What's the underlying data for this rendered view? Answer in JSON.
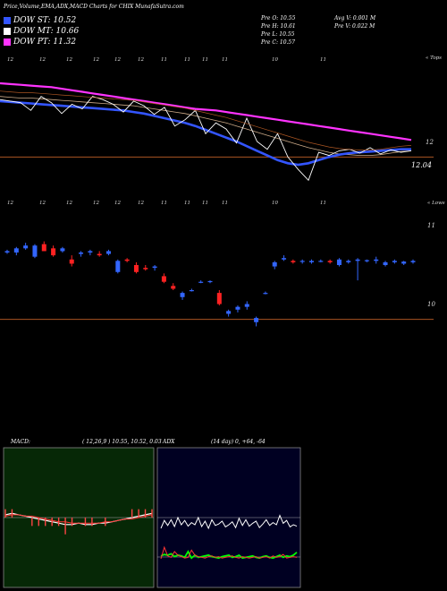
{
  "header": {
    "title": "Price,Volume,EMA,ADX,MACD Charts for CHIX  MunafaSutra.com",
    "dow_st": "DOW ST: 10.52",
    "dow_mt": "DOW MT: 10.66",
    "dow_pt": "DOW PT: 11.32",
    "pre_o": "Pre   O: 10.55",
    "pre_h": "Pre   H: 10.61",
    "pre_l": "Pre   L: 10.55",
    "pre_c": "Pre   C: 10.57",
    "avg_v": "Avg V: 0.001 M",
    "pre_v": "Pre   V: 0.022  M"
  },
  "colors": {
    "dow_st": "#3355ff",
    "dow_mt": "#ffffff",
    "dow_pt": "#ff33ff",
    "up_candle": "#3366ff",
    "down_candle": "#ff2222",
    "brown_line": "#aa5522",
    "macd_bg": "#062806",
    "adx_bg": "#000022"
  },
  "chart_data": [
    {
      "type": "line",
      "name": "ema_panel",
      "top_labels": [
        "12",
        "12",
        "12",
        "12",
        "12",
        "12",
        "11",
        "11",
        "11",
        "11",
        "10",
        "11"
      ],
      "right_top_label": "« Tops",
      "price_label_right": "12",
      "price_current": "12.04",
      "series": [
        {
          "name": "DOW PT",
          "values": [
            12.95,
            12.94,
            12.93,
            12.92,
            12.91,
            12.9,
            12.88,
            12.86,
            12.84,
            12.82,
            12.8,
            12.78,
            12.76,
            12.74,
            12.72,
            12.7,
            12.68,
            12.66,
            12.64,
            12.62,
            12.61,
            12.6,
            12.58,
            12.56,
            12.54,
            12.52,
            12.5,
            12.48,
            12.46,
            12.44,
            12.42,
            12.4,
            12.38,
            12.36,
            12.34,
            12.32,
            12.3,
            12.28,
            12.26,
            12.24,
            12.22
          ]
        },
        {
          "name": "DOW MT",
          "values": [
            12.78,
            12.77,
            12.76,
            12.76,
            12.75,
            12.74,
            12.73,
            12.72,
            12.71,
            12.7,
            12.69,
            12.68,
            12.67,
            12.66,
            12.64,
            12.62,
            12.6,
            12.58,
            12.56,
            12.53,
            12.5,
            12.47,
            12.44,
            12.4,
            12.36,
            12.32,
            12.28,
            12.24,
            12.2,
            12.16,
            12.12,
            12.09,
            12.06,
            12.04,
            12.03,
            12.02,
            12.02,
            12.03,
            12.05,
            12.07,
            12.08
          ]
        },
        {
          "name": "DOW ST",
          "values": [
            12.72,
            12.71,
            12.7,
            12.69,
            12.68,
            12.67,
            12.66,
            12.65,
            12.64,
            12.63,
            12.62,
            12.61,
            12.6,
            12.58,
            12.56,
            12.53,
            12.5,
            12.47,
            12.44,
            12.4,
            12.35,
            12.3,
            12.25,
            12.2,
            12.14,
            12.08,
            12.02,
            11.96,
            11.92,
            11.9,
            11.92,
            11.96,
            12.0,
            12.03,
            12.05,
            12.06,
            12.07,
            12.08,
            12.09,
            12.1,
            12.1
          ]
        },
        {
          "name": "Price",
          "values": [
            12.74,
            12.72,
            12.7,
            12.6,
            12.78,
            12.7,
            12.56,
            12.68,
            12.62,
            12.78,
            12.74,
            12.68,
            12.58,
            12.72,
            12.66,
            12.55,
            12.64,
            12.4,
            12.48,
            12.6,
            12.3,
            12.44,
            12.36,
            12.18,
            12.5,
            12.2,
            12.1,
            12.3,
            12.0,
            11.84,
            11.7,
            12.06,
            12.02,
            12.08,
            12.1,
            12.05,
            12.12,
            12.04,
            12.09,
            12.06,
            12.08
          ]
        }
      ],
      "hline": 12.0,
      "ylim": [
        11.6,
        13.1
      ]
    },
    {
      "type": "candlestick",
      "name": "price_panel",
      "top_labels": [
        "12",
        "12",
        "12",
        "12",
        "12",
        "12",
        "11",
        "11",
        "11",
        "11",
        "10",
        "11"
      ],
      "right_top_label": "« Lows",
      "price_labels_right": [
        "11",
        "10"
      ],
      "ylim": [
        9.7,
        11.5
      ],
      "candles": [
        {
          "o": 10.96,
          "h": 11.0,
          "l": 10.94,
          "c": 10.98
        },
        {
          "o": 10.96,
          "h": 11.04,
          "l": 10.92,
          "c": 11.02
        },
        {
          "o": 11.02,
          "h": 11.1,
          "l": 11.0,
          "c": 11.06
        },
        {
          "o": 10.9,
          "h": 11.08,
          "l": 10.88,
          "c": 11.06
        },
        {
          "o": 11.08,
          "h": 11.12,
          "l": 10.98,
          "c": 10.98
        },
        {
          "o": 11.02,
          "h": 11.06,
          "l": 10.9,
          "c": 10.92
        },
        {
          "o": 10.98,
          "h": 11.04,
          "l": 10.96,
          "c": 11.02
        },
        {
          "o": 10.86,
          "h": 10.92,
          "l": 10.76,
          "c": 10.8
        },
        {
          "o": 10.94,
          "h": 10.98,
          "l": 10.9,
          "c": 10.96
        },
        {
          "o": 10.96,
          "h": 11.0,
          "l": 10.92,
          "c": 10.98
        },
        {
          "o": 10.94,
          "h": 10.98,
          "l": 10.9,
          "c": 10.92
        },
        {
          "o": 10.94,
          "h": 11.0,
          "l": 10.92,
          "c": 10.98
        },
        {
          "o": 10.68,
          "h": 10.86,
          "l": 10.66,
          "c": 10.84
        },
        {
          "o": 10.86,
          "h": 10.88,
          "l": 10.82,
          "c": 10.84
        },
        {
          "o": 10.78,
          "h": 10.82,
          "l": 10.66,
          "c": 10.68
        },
        {
          "o": 10.74,
          "h": 10.78,
          "l": 10.7,
          "c": 10.72
        },
        {
          "o": 10.74,
          "h": 10.78,
          "l": 10.7,
          "c": 10.76
        },
        {
          "o": 10.62,
          "h": 10.66,
          "l": 10.52,
          "c": 10.54
        },
        {
          "o": 10.48,
          "h": 10.52,
          "l": 10.42,
          "c": 10.44
        },
        {
          "o": 10.32,
          "h": 10.4,
          "l": 10.28,
          "c": 10.38
        },
        {
          "o": 10.42,
          "h": 10.44,
          "l": 10.4,
          "c": 10.42
        },
        {
          "o": 10.54,
          "h": 10.56,
          "l": 10.52,
          "c": 10.54
        },
        {
          "o": 10.54,
          "h": 10.56,
          "l": 10.52,
          "c": 10.55
        },
        {
          "o": 10.38,
          "h": 10.42,
          "l": 10.2,
          "c": 10.22
        },
        {
          "o": 10.08,
          "h": 10.14,
          "l": 10.04,
          "c": 10.12
        },
        {
          "o": 10.14,
          "h": 10.2,
          "l": 10.1,
          "c": 10.18
        },
        {
          "o": 10.18,
          "h": 10.26,
          "l": 10.14,
          "c": 10.22
        },
        {
          "o": 9.96,
          "h": 10.04,
          "l": 9.9,
          "c": 10.02
        },
        {
          "o": 10.38,
          "h": 10.4,
          "l": 10.36,
          "c": 10.38
        },
        {
          "o": 10.76,
          "h": 10.84,
          "l": 10.72,
          "c": 10.82
        },
        {
          "o": 10.86,
          "h": 10.92,
          "l": 10.84,
          "c": 10.88
        },
        {
          "o": 10.84,
          "h": 10.86,
          "l": 10.8,
          "c": 10.82
        },
        {
          "o": 10.84,
          "h": 10.86,
          "l": 10.8,
          "c": 10.84
        },
        {
          "o": 10.82,
          "h": 10.86,
          "l": 10.8,
          "c": 10.84
        },
        {
          "o": 10.84,
          "h": 10.86,
          "l": 10.82,
          "c": 10.84
        },
        {
          "o": 10.84,
          "h": 10.86,
          "l": 10.8,
          "c": 10.82
        },
        {
          "o": 10.78,
          "h": 10.88,
          "l": 10.76,
          "c": 10.86
        },
        {
          "o": 10.82,
          "h": 10.86,
          "l": 10.8,
          "c": 10.84
        },
        {
          "o": 10.84,
          "h": 10.88,
          "l": 10.56,
          "c": 10.86
        },
        {
          "o": 10.84,
          "h": 10.86,
          "l": 10.82,
          "c": 10.85
        },
        {
          "o": 10.84,
          "h": 10.9,
          "l": 10.8,
          "c": 10.86
        },
        {
          "o": 10.78,
          "h": 10.84,
          "l": 10.76,
          "c": 10.82
        },
        {
          "o": 10.82,
          "h": 10.86,
          "l": 10.8,
          "c": 10.84
        },
        {
          "o": 10.8,
          "h": 10.84,
          "l": 10.78,
          "c": 10.83
        },
        {
          "o": 10.82,
          "h": 10.86,
          "l": 10.8,
          "c": 10.84
        }
      ],
      "hline": 10.0
    },
    {
      "type": "line",
      "name": "macd_panel",
      "label": "MACD:",
      "params": "( 12,26,9 ) 10.55,  10.52,  0.03",
      "series": [
        {
          "name": "macd",
          "values": [
            0.02,
            0.03,
            0.02,
            0.01,
            0.0,
            -0.01,
            -0.02,
            -0.03,
            -0.04,
            -0.05,
            -0.05,
            -0.04,
            -0.05,
            -0.05,
            -0.04,
            -0.04,
            -0.03,
            -0.02,
            -0.01,
            0.0,
            0.01,
            0.02,
            0.03
          ]
        },
        {
          "name": "signal",
          "values": [
            0.01,
            0.02,
            0.02,
            0.01,
            0.01,
            0.0,
            -0.01,
            -0.02,
            -0.03,
            -0.03,
            -0.04,
            -0.04,
            -0.04,
            -0.04,
            -0.04,
            -0.03,
            -0.03,
            -0.02,
            -0.01,
            -0.01,
            0.0,
            0.01,
            0.02
          ]
        }
      ],
      "ylim": [
        -0.5,
        0.5
      ]
    },
    {
      "type": "line",
      "name": "adx_panel",
      "label": "ADX",
      "params": "(14  day) 0,  +64,  -64",
      "series": [
        {
          "name": "adx",
          "values": [
            50,
            72,
            58,
            74,
            55,
            80,
            60,
            72,
            56,
            66,
            60,
            80,
            55,
            70,
            50,
            74,
            58,
            62,
            70,
            54,
            60,
            68,
            52,
            78,
            58,
            74,
            56,
            64,
            70,
            52,
            62,
            74,
            58,
            66,
            60,
            86,
            64,
            72,
            54,
            60,
            56
          ]
        },
        {
          "name": "+di",
          "values": [
            28,
            32,
            30,
            34,
            26,
            30,
            28,
            24,
            40,
            22,
            30,
            24,
            26,
            28,
            30,
            26,
            24,
            22,
            26,
            28,
            30,
            24,
            26,
            30,
            22,
            24,
            26,
            28,
            24,
            22,
            26,
            28,
            24,
            22,
            26,
            30,
            24,
            28,
            26,
            30,
            38
          ]
        },
        {
          "name": "-di",
          "values": [
            20,
            52,
            28,
            24,
            40,
            30,
            26,
            22,
            24,
            44,
            30,
            26,
            24,
            22,
            26,
            28,
            24,
            26,
            22,
            24,
            26,
            28,
            24,
            22,
            26,
            24,
            22,
            24,
            26,
            22,
            24,
            26,
            22,
            28,
            24,
            26,
            32,
            22,
            24,
            26,
            24
          ]
        }
      ],
      "ylim": [
        0,
        100
      ]
    }
  ]
}
